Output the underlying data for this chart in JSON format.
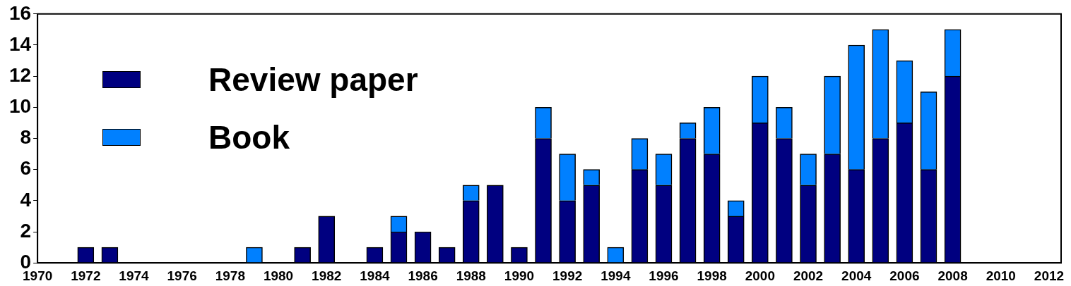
{
  "chart_data": {
    "type": "bar",
    "stacked": true,
    "x": [
      1972,
      1973,
      1979,
      1981,
      1982,
      1984,
      1985,
      1986,
      1987,
      1988,
      1989,
      1990,
      1991,
      1992,
      1993,
      1994,
      1995,
      1996,
      1997,
      1998,
      1999,
      2000,
      2001,
      2002,
      2003,
      2004,
      2005,
      2006,
      2007,
      2008
    ],
    "series": [
      {
        "name": "Review paper",
        "color": "#000080",
        "values": [
          1,
          1,
          0,
          1,
          3,
          1,
          2,
          2,
          1,
          4,
          5,
          1,
          8,
          4,
          5,
          0,
          6,
          5,
          8,
          7,
          3,
          9,
          8,
          5,
          7,
          6,
          8,
          9,
          6,
          12
        ]
      },
      {
        "name": "Book",
        "color": "#0080ff",
        "values": [
          0,
          0,
          1,
          0,
          0,
          0,
          1,
          0,
          0,
          1,
          0,
          0,
          2,
          3,
          1,
          1,
          2,
          2,
          1,
          3,
          1,
          3,
          2,
          2,
          5,
          8,
          7,
          4,
          5,
          3
        ]
      }
    ],
    "xlim": [
      1970,
      2012.5
    ],
    "xticks": [
      1970,
      1972,
      1974,
      1976,
      1978,
      1980,
      1982,
      1984,
      1986,
      1988,
      1990,
      1992,
      1994,
      1996,
      1998,
      2000,
      2002,
      2004,
      2006,
      2008,
      2010,
      2012
    ],
    "ylim": [
      0,
      16
    ],
    "yticks": [
      0,
      2,
      4,
      6,
      8,
      10,
      12,
      14,
      16
    ],
    "grid": false,
    "legend": "top left"
  }
}
